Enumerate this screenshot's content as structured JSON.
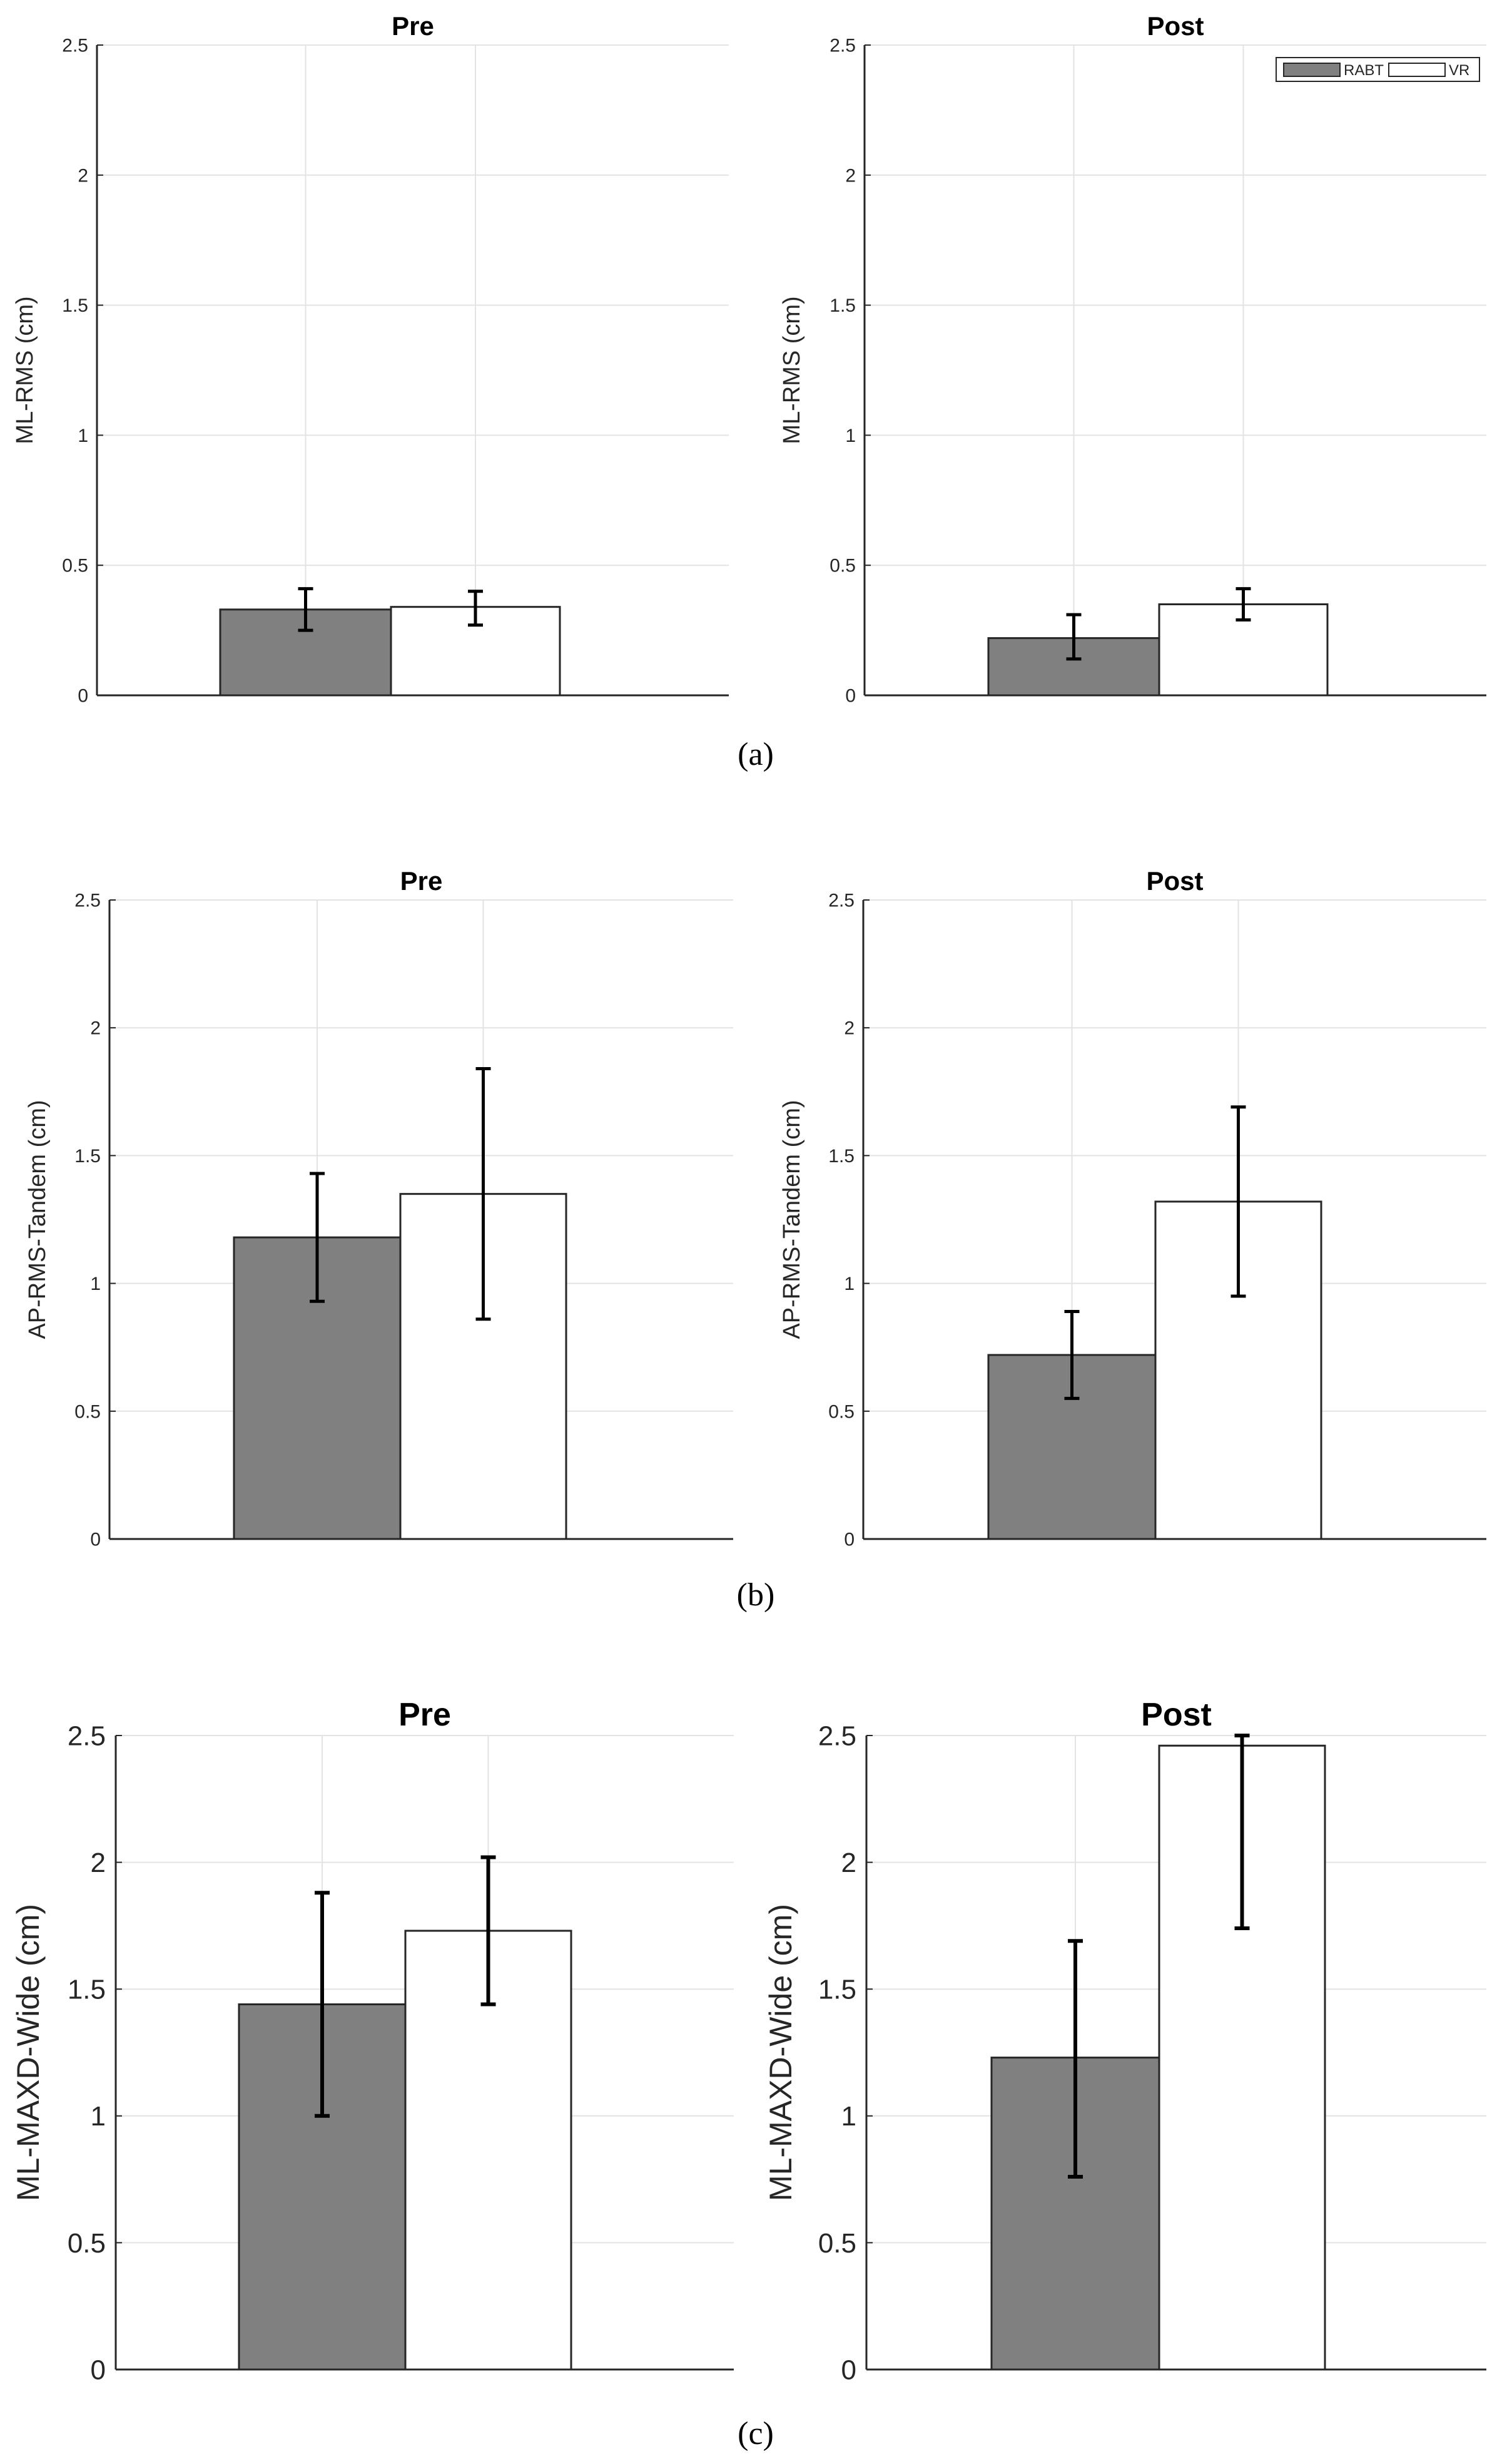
{
  "colors": {
    "rabt": "#808080",
    "vr": "#ffffff",
    "grid": "#e3e3e3",
    "axis": "#262626",
    "errorbar": "#000000"
  },
  "legend": {
    "items": [
      {
        "label": "RABT",
        "color": "#808080"
      },
      {
        "label": "VR",
        "color": "#ffffff"
      }
    ]
  },
  "panel_labels": [
    "(a)",
    "(b)",
    "(c)"
  ],
  "chart_data": [
    {
      "type": "bar",
      "panel": "a",
      "title": "Pre",
      "ylabel": "ML-RMS (cm)",
      "ylim": [
        0,
        2.5
      ],
      "yticks": [
        "0",
        "0.5",
        "1",
        "1.5",
        "2",
        "2.5"
      ],
      "grid": true,
      "series": [
        {
          "name": "RABT",
          "value": 0.33,
          "err_low": 0.25,
          "err_high": 0.41
        },
        {
          "name": "VR",
          "value": 0.34,
          "err_low": 0.27,
          "err_high": 0.4
        }
      ]
    },
    {
      "type": "bar",
      "panel": "a",
      "title": "Post",
      "ylabel": "ML-RMS (cm)",
      "ylim": [
        0,
        2.5
      ],
      "yticks": [
        "0",
        "0.5",
        "1",
        "1.5",
        "2",
        "2.5"
      ],
      "grid": true,
      "legend": "top-right",
      "series": [
        {
          "name": "RABT",
          "value": 0.22,
          "err_low": 0.14,
          "err_high": 0.31
        },
        {
          "name": "VR",
          "value": 0.35,
          "err_low": 0.29,
          "err_high": 0.41
        }
      ]
    },
    {
      "type": "bar",
      "panel": "b",
      "title": "Pre",
      "ylabel": "AP-RMS-Tandem (cm)",
      "ylim": [
        0,
        2.5
      ],
      "yticks": [
        "0",
        "0.5",
        "1",
        "1.5",
        "2",
        "2.5"
      ],
      "grid": true,
      "series": [
        {
          "name": "RABT",
          "value": 1.18,
          "err_low": 0.93,
          "err_high": 1.43
        },
        {
          "name": "VR",
          "value": 1.35,
          "err_low": 0.86,
          "err_high": 1.84
        }
      ]
    },
    {
      "type": "bar",
      "panel": "b",
      "title": "Post",
      "ylabel": "AP-RMS-Tandem (cm)",
      "ylim": [
        0,
        2.5
      ],
      "yticks": [
        "0",
        "0.5",
        "1",
        "1.5",
        "2",
        "2.5"
      ],
      "grid": true,
      "series": [
        {
          "name": "RABT",
          "value": 0.72,
          "err_low": 0.55,
          "err_high": 0.89
        },
        {
          "name": "VR",
          "value": 1.32,
          "err_low": 0.95,
          "err_high": 1.69
        }
      ]
    },
    {
      "type": "bar",
      "panel": "c",
      "title": "Pre",
      "ylabel": "ML-MAXD-Wide (cm)",
      "ylim": [
        0,
        2.5
      ],
      "yticks": [
        "0",
        "0.5",
        "1",
        "1.5",
        "2",
        "2.5"
      ],
      "grid": true,
      "series": [
        {
          "name": "RABT",
          "value": 1.44,
          "err_low": 1.0,
          "err_high": 1.88
        },
        {
          "name": "VR",
          "value": 1.73,
          "err_low": 1.44,
          "err_high": 2.02
        }
      ]
    },
    {
      "type": "bar",
      "panel": "c",
      "title": "Post",
      "ylabel": "ML-MAXD-Wide (cm)",
      "ylim": [
        0,
        2.5
      ],
      "yticks": [
        "0",
        "0.5",
        "1",
        "1.5",
        "2",
        "2.5"
      ],
      "grid": true,
      "series": [
        {
          "name": "RABT",
          "value": 1.23,
          "err_low": 0.76,
          "err_high": 1.69
        },
        {
          "name": "VR",
          "value": 2.46,
          "err_low": 1.74,
          "err_high": 2.5
        }
      ]
    }
  ]
}
